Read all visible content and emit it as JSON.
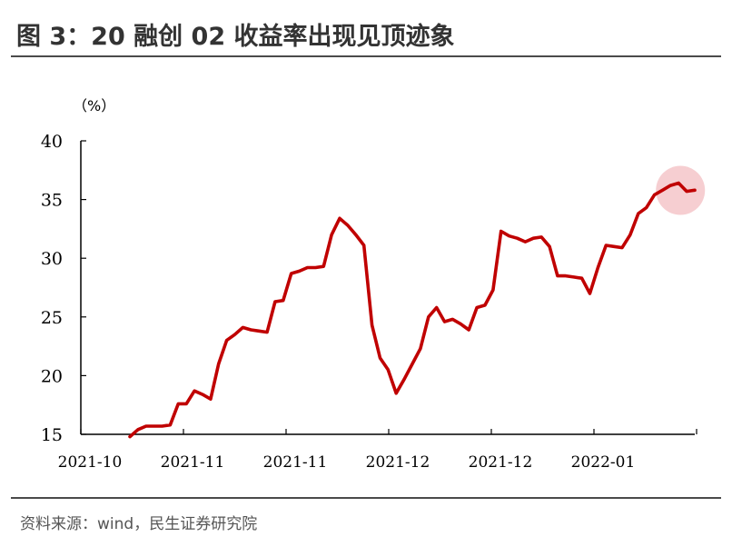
{
  "header": {
    "title": "图 3：20 融创 02 收益率出现见顶迹象"
  },
  "footer": {
    "source": "资料来源：wind，民生证券研究院"
  },
  "chart_data": {
    "type": "line",
    "ylabel": "（%）",
    "ylim": [
      15,
      40
    ],
    "yticks": [
      15,
      20,
      25,
      30,
      35,
      40
    ],
    "xticks": [
      "2021-10",
      "2021-11",
      "2021-11",
      "2021-12",
      "2021-12",
      "2022-01"
    ],
    "grid": false,
    "line_color": "#c00000",
    "highlight_color": "#f4c6c9",
    "series": [
      {
        "values": [
          14.8,
          15.4,
          15.7,
          15.7,
          15.7,
          15.8,
          17.6,
          17.6,
          18.7,
          18.4,
          18.0,
          21.0,
          23.0,
          23.5,
          24.1,
          23.9,
          23.8,
          23.7,
          26.3,
          26.4,
          28.7,
          28.9,
          29.2,
          29.2,
          29.3,
          32.0,
          33.4,
          32.8,
          32.0,
          31.1,
          24.3,
          21.5,
          20.5,
          18.5,
          19.7,
          21.0,
          22.3,
          25.0,
          25.8,
          24.6,
          24.8,
          24.4,
          23.9,
          25.8,
          26.0,
          27.3,
          32.3,
          31.9,
          31.7,
          31.4,
          31.7,
          31.8,
          31.0,
          28.5,
          28.5,
          28.4,
          28.3,
          27.0,
          29.2,
          31.1,
          31.0,
          30.9,
          32.0,
          33.8,
          34.3,
          35.4,
          35.8,
          36.2,
          36.4,
          35.7,
          35.8
        ]
      }
    ],
    "highlight_index": 68
  }
}
